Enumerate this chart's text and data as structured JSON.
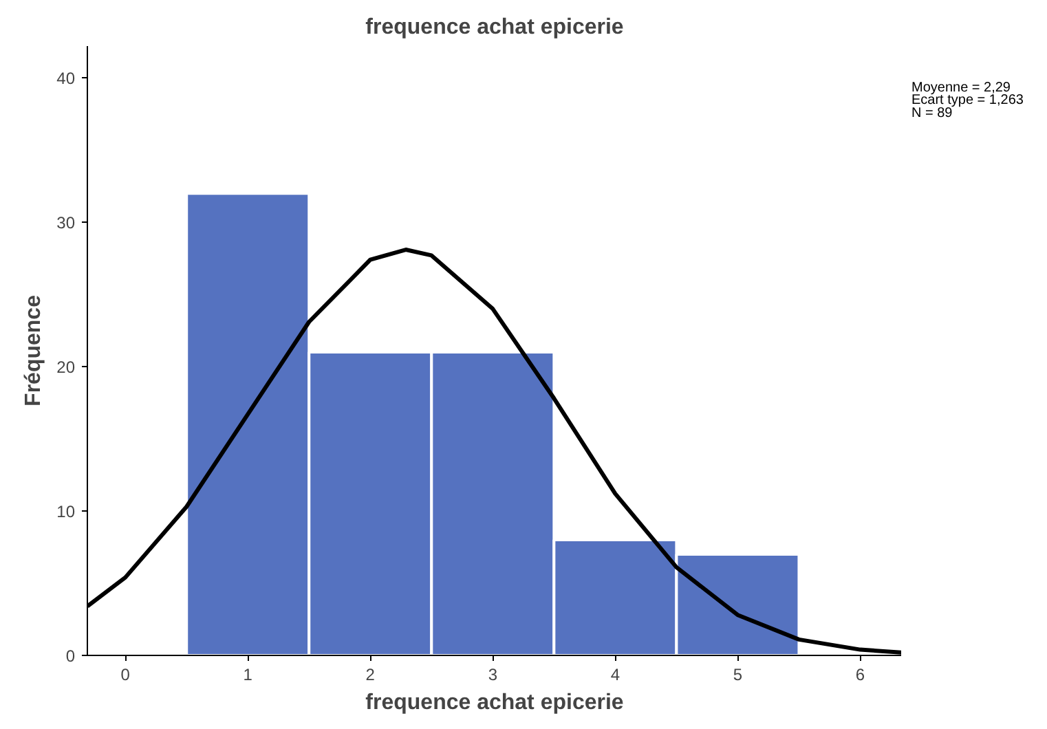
{
  "chart_data": {
    "type": "histogram",
    "title": "frequence achat epicerie",
    "xlabel": "frequence achat epicerie",
    "ylabel": "Fréquence",
    "bins": [
      0.5,
      1.5,
      2.5,
      3.5,
      4.5,
      5.5
    ],
    "values": [
      32,
      21,
      21,
      8,
      7
    ],
    "color": "#5572c0",
    "series": [
      {
        "type": "line",
        "color": "#000000",
        "x": [
          -0.31,
          0,
          0.5,
          1,
          1.5,
          2,
          2.29,
          2.5,
          3,
          3.5,
          4,
          4.5,
          5,
          5.5,
          6,
          6.34
        ],
        "values": [
          3.4,
          5.4,
          10.3,
          16.7,
          23.1,
          27.4,
          28.1,
          27.7,
          24.0,
          17.8,
          11.2,
          6.1,
          2.8,
          1.1,
          0.4,
          0.2
        ]
      }
    ],
    "xlim": [
      -0.31,
      6.34
    ],
    "ylim": [
      0,
      42.2
    ],
    "xticks": [
      0,
      1,
      2,
      3,
      4,
      5,
      6
    ],
    "yticks": [
      0,
      10,
      20,
      30,
      40
    ],
    "annotations": [
      "Moyenne = 2,29",
      "Ecart type = 1,263",
      "N = 89"
    ],
    "grid": false
  }
}
